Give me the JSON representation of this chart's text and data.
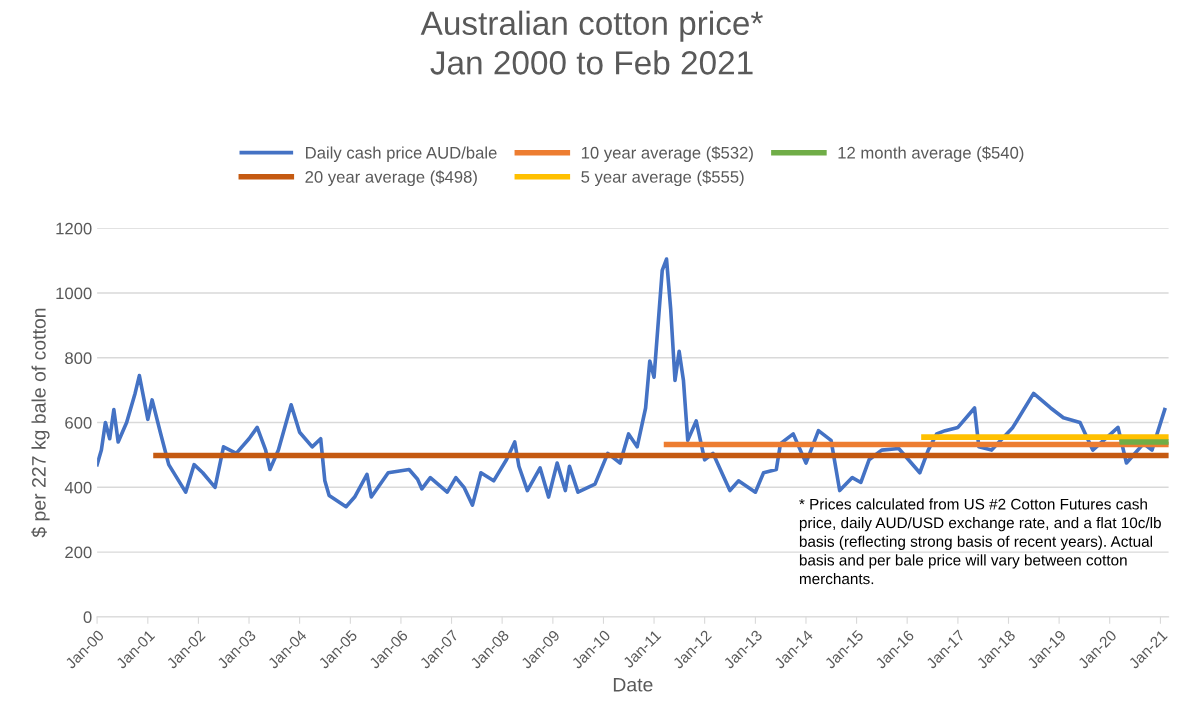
{
  "chart_data": {
    "type": "line",
    "title": "Australian cotton price*\nJan 2000 to Feb 2021",
    "xlabel": "Date",
    "ylabel": "$ per 227 kg bale of cotton",
    "series": [
      {
        "name": "Daily cash price AUD/bale",
        "color": "#4472c4",
        "x": [
          "2000-01",
          "2000-02",
          "2000-03",
          "2000-04",
          "2000-05",
          "2000-06",
          "2000-08",
          "2000-10",
          "2000-11",
          "2001-01",
          "2001-02",
          "2001-04",
          "2001-06",
          "2001-10",
          "2001-12",
          "2002-02",
          "2002-05",
          "2002-07",
          "2002-10",
          "2003-01",
          "2003-03",
          "2003-05",
          "2003-06",
          "2003-08",
          "2003-11",
          "2004-01",
          "2004-04",
          "2004-06",
          "2004-07",
          "2004-08",
          "2004-12",
          "2005-02",
          "2005-05",
          "2005-06",
          "2005-10",
          "2006-03",
          "2006-05",
          "2006-06",
          "2006-08",
          "2006-12",
          "2007-02",
          "2007-04",
          "2007-06",
          "2007-08",
          "2007-11",
          "2008-02",
          "2008-04",
          "2008-05",
          "2008-07",
          "2008-10",
          "2008-12",
          "2009-02",
          "2009-04",
          "2009-05",
          "2009-07",
          "2009-11",
          "2010-02",
          "2010-05",
          "2010-07",
          "2010-09",
          "2010-11",
          "2010-12",
          "2011-01",
          "2011-03",
          "2011-04",
          "2011-05",
          "2011-06",
          "2011-07",
          "2011-08",
          "2011-09",
          "2011-11",
          "2012-01",
          "2012-03",
          "2012-07",
          "2012-09",
          "2013-01",
          "2013-03",
          "2013-06",
          "2013-07",
          "2013-10",
          "2014-01",
          "2014-04",
          "2014-07",
          "2014-09",
          "2014-12",
          "2015-02",
          "2015-04",
          "2015-07",
          "2015-11",
          "2016-04",
          "2016-06",
          "2016-08",
          "2016-10",
          "2017-01",
          "2017-05",
          "2017-06",
          "2017-09",
          "2018-02",
          "2018-07",
          "2018-11",
          "2019-02",
          "2019-06",
          "2019-09",
          "2020-03",
          "2020-05",
          "2020-09",
          "2020-11",
          "2021-02"
        ],
        "values": [
          470,
          515,
          600,
          550,
          640,
          540,
          600,
          690,
          745,
          610,
          670,
          570,
          470,
          385,
          470,
          445,
          400,
          525,
          505,
          550,
          585,
          515,
          455,
          515,
          655,
          570,
          525,
          550,
          420,
          375,
          340,
          370,
          440,
          370,
          445,
          455,
          425,
          395,
          430,
          385,
          430,
          400,
          345,
          445,
          420,
          485,
          540,
          465,
          390,
          460,
          370,
          475,
          390,
          465,
          385,
          410,
          505,
          475,
          565,
          525,
          645,
          790,
          740,
          1070,
          1105,
          950,
          730,
          820,
          730,
          545,
          605,
          485,
          505,
          390,
          420,
          385,
          445,
          455,
          535,
          565,
          475,
          575,
          545,
          390,
          430,
          415,
          485,
          515,
          520,
          445,
          515,
          565,
          575,
          585,
          645,
          525,
          515,
          585,
          690,
          645,
          615,
          600,
          515,
          585,
          475,
          535,
          515,
          640
        ]
      },
      {
        "name": "20 year average ($498)",
        "color": "#c55a11",
        "x": [
          "2001-03",
          "2021-03"
        ],
        "values": [
          498,
          498
        ]
      },
      {
        "name": "10 year average ($532)",
        "color": "#ed7d31",
        "x": [
          "2011-04",
          "2021-03"
        ],
        "values": [
          532,
          532
        ]
      },
      {
        "name": "5 year average ($555)",
        "color": "#ffc000",
        "x": [
          "2016-05",
          "2021-03"
        ],
        "values": [
          555,
          555
        ]
      },
      {
        "name": "12 month average ($540)",
        "color": "#70ad47",
        "x": [
          "2020-04",
          "2021-03"
        ],
        "values": [
          540,
          540
        ]
      }
    ],
    "annotations": [
      "* Prices calculated from US #2 Cotton Futures cash price, daily AUD/USD exchange rate, and a flat 10c/lb basis (reflecting strong basis of recent years). Actual basis and per bale price will vary between cotton merchants."
    ],
    "xlim": [
      "2000-01",
      "2021-03"
    ],
    "xticks": [
      {
        "value": "2000-01",
        "label": "Jan-00"
      },
      {
        "value": "2001-01",
        "label": "Jan-01"
      },
      {
        "value": "2002-01",
        "label": "Jan-02"
      },
      {
        "value": "2003-01",
        "label": "Jan-03"
      },
      {
        "value": "2004-01",
        "label": "Jan-04"
      },
      {
        "value": "2005-01",
        "label": "Jan-05"
      },
      {
        "value": "2006-01",
        "label": "Jan-06"
      },
      {
        "value": "2007-01",
        "label": "Jan-07"
      },
      {
        "value": "2008-01",
        "label": "Jan-08"
      },
      {
        "value": "2009-01",
        "label": "Jan-09"
      },
      {
        "value": "2010-01",
        "label": "Jan-10"
      },
      {
        "value": "2011-01",
        "label": "Jan-11"
      },
      {
        "value": "2012-01",
        "label": "Jan-12"
      },
      {
        "value": "2013-01",
        "label": "Jan-13"
      },
      {
        "value": "2014-01",
        "label": "Jan-14"
      },
      {
        "value": "2015-01",
        "label": "Jan-15"
      },
      {
        "value": "2016-01",
        "label": "Jan-16"
      },
      {
        "value": "2017-01",
        "label": "Jan-17"
      },
      {
        "value": "2018-01",
        "label": "Jan-18"
      },
      {
        "value": "2019-01",
        "label": "Jan-19"
      },
      {
        "value": "2020-01",
        "label": "Jan-20"
      },
      {
        "value": "2021-01",
        "label": "Jan-21"
      }
    ],
    "ylim": [
      0,
      1200
    ],
    "yticks": [
      0,
      200,
      400,
      600,
      800,
      1000,
      1200
    ],
    "grid": "y",
    "legend": "top",
    "marker": "none",
    "line_style": "solid"
  }
}
